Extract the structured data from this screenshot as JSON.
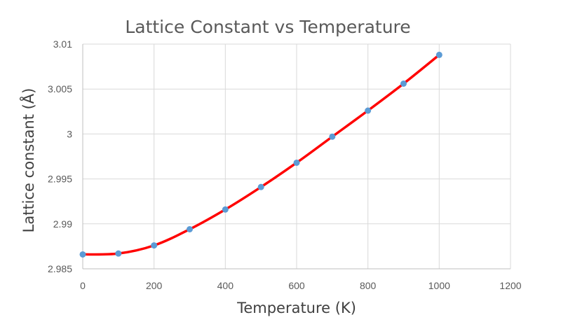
{
  "chart_data": {
    "type": "line",
    "title": "Lattice Constant vs Temperature",
    "xlabel": "Temperature (K)",
    "ylabel": "Lattice constant (Å)",
    "xlim": [
      0,
      1200
    ],
    "ylim": [
      2.985,
      3.01
    ],
    "x_ticks": [
      0,
      200,
      400,
      600,
      800,
      1000,
      1200
    ],
    "y_ticks": [
      2.985,
      2.99,
      2.995,
      3,
      3.005,
      3.01
    ],
    "x_tick_labels": [
      "0",
      "200",
      "400",
      "600",
      "800",
      "1000",
      "1200"
    ],
    "y_tick_labels": [
      "2.985",
      "2.99",
      "2.995",
      "3",
      "3.005",
      "3.01"
    ],
    "grid": true,
    "legend": "none",
    "series": [
      {
        "name": "Lattice constant",
        "line_color": "#ff0000",
        "marker_color": "#5b9bd5",
        "smooth": true,
        "x": [
          0,
          100,
          200,
          300,
          400,
          500,
          600,
          700,
          800,
          900,
          1000
        ],
        "y": [
          2.9866,
          2.9867,
          2.9876,
          2.9894,
          2.9916,
          2.9941,
          2.9968,
          2.9997,
          3.0026,
          3.0056,
          3.0088
        ]
      }
    ]
  }
}
